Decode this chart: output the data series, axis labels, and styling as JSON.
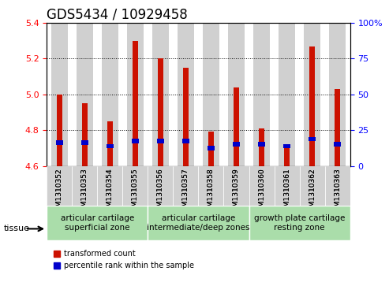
{
  "title": "GDS5434 / 10929458",
  "samples": [
    "GSM1310352",
    "GSM1310353",
    "GSM1310354",
    "GSM1310355",
    "GSM1310356",
    "GSM1310357",
    "GSM1310358",
    "GSM1310359",
    "GSM1310360",
    "GSM1310361",
    "GSM1310362",
    "GSM1310363"
  ],
  "red_values": [
    5.0,
    4.95,
    4.85,
    5.3,
    5.2,
    5.15,
    4.79,
    5.04,
    4.81,
    4.71,
    5.27,
    5.03
  ],
  "blue_values": [
    4.73,
    4.73,
    4.71,
    4.74,
    4.74,
    4.74,
    4.7,
    4.72,
    4.72,
    4.71,
    4.75,
    4.72
  ],
  "ylim": [
    4.6,
    5.4
  ],
  "yticks_left": [
    4.6,
    4.8,
    5.0,
    5.2,
    5.4
  ],
  "yticks_right": [
    0,
    25,
    50,
    75,
    100
  ],
  "bar_base": 4.6,
  "bar_width": 0.6,
  "red_color": "#cc1100",
  "blue_color": "#0000cc",
  "grid_color": "#000000",
  "bg_color": "#ffffff",
  "bar_bg_color": "#d0d0d0",
  "tissue_groups": [
    {
      "label": "articular cartilage\nsuperficial zone",
      "start": 0,
      "end": 4,
      "color": "#aaddaa"
    },
    {
      "label": "articular cartilage\nintermediate/deep zones",
      "start": 4,
      "end": 8,
      "color": "#aaddaa"
    },
    {
      "label": "growth plate cartilage\nresting zone",
      "start": 8,
      "end": 12,
      "color": "#aaddaa"
    }
  ],
  "tissue_label": "tissue",
  "legend_red": "transformed count",
  "legend_blue": "percentile rank within the sample",
  "title_fontsize": 12,
  "axis_label_fontsize": 9,
  "tick_fontsize": 8,
  "tissue_fontsize": 7.5
}
